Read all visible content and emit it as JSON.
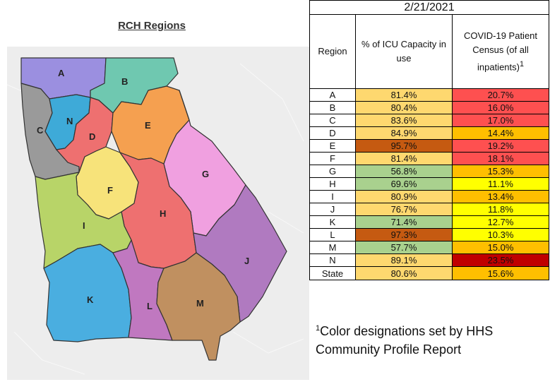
{
  "map": {
    "title": "RCH Regions",
    "region_labels": [
      "A",
      "B",
      "C",
      "N",
      "D",
      "E",
      "F",
      "G",
      "H",
      "I",
      "J",
      "K",
      "L",
      "M"
    ],
    "region_colors": {
      "A": "#9b8fe0",
      "B": "#6fc8b0",
      "C": "#9a9a9a",
      "N": "#3eaad8",
      "D": "#ee7070",
      "E": "#f5a050",
      "F": "#f7e37a",
      "G": "#f0a0e0",
      "H": "#ee7070",
      "I": "#b8d468",
      "J": "#b07ac0",
      "K": "#4aaee0",
      "L": "#c078c0",
      "M": "#c09060"
    }
  },
  "table": {
    "date": "2/21/2021",
    "headers": {
      "region": "Region",
      "icu": "% of ICU Capacity in use",
      "census": "COVID-19 Patient Census (of all inpatients)",
      "census_sup": "1"
    },
    "rows": [
      {
        "region": "A",
        "icu": "81.4%",
        "icu_color": "#fed86f",
        "census": "20.7%",
        "census_color": "#fe5050"
      },
      {
        "region": "B",
        "icu": "80.4%",
        "icu_color": "#fed86f",
        "census": "16.0%",
        "census_color": "#fe5050"
      },
      {
        "region": "C",
        "icu": "83.6%",
        "icu_color": "#fed86f",
        "census": "17.0%",
        "census_color": "#fe5050"
      },
      {
        "region": "D",
        "icu": "84.9%",
        "icu_color": "#fed86f",
        "census": "14.4%",
        "census_color": "#ffbf00"
      },
      {
        "region": "E",
        "icu": "95.7%",
        "icu_color": "#c55a11",
        "census": "19.2%",
        "census_color": "#fe5050"
      },
      {
        "region": "F",
        "icu": "81.4%",
        "icu_color": "#fed86f",
        "census": "18.1%",
        "census_color": "#fe5050"
      },
      {
        "region": "G",
        "icu": "56.8%",
        "icu_color": "#a9d18e",
        "census": "15.3%",
        "census_color": "#ffbf00"
      },
      {
        "region": "H",
        "icu": "69.6%",
        "icu_color": "#a9d18e",
        "census": "11.1%",
        "census_color": "#ffff00"
      },
      {
        "region": "I",
        "icu": "80.9%",
        "icu_color": "#fed86f",
        "census": "13.4%",
        "census_color": "#ffbf00"
      },
      {
        "region": "J",
        "icu": "76.7%",
        "icu_color": "#fed86f",
        "census": "11.8%",
        "census_color": "#ffff00"
      },
      {
        "region": "K",
        "icu": "71.4%",
        "icu_color": "#a9d18e",
        "census": "12.7%",
        "census_color": "#ffff00"
      },
      {
        "region": "L",
        "icu": "97.3%",
        "icu_color": "#c55a11",
        "census": "10.3%",
        "census_color": "#ffff00"
      },
      {
        "region": "M",
        "icu": "57.7%",
        "icu_color": "#a9d18e",
        "census": "15.0%",
        "census_color": "#ffbf00"
      },
      {
        "region": "N",
        "icu": "89.1%",
        "icu_color": "#fed86f",
        "census": "23.5%",
        "census_color": "#c00000"
      }
    ],
    "state": {
      "region": "State",
      "icu": "80.6%",
      "icu_color": "#fed86f",
      "census": "15.6%",
      "census_color": "#ffbf00"
    }
  },
  "footnote": {
    "sup": "1",
    "text": "Color designations set by HHS Community Profile Report"
  }
}
